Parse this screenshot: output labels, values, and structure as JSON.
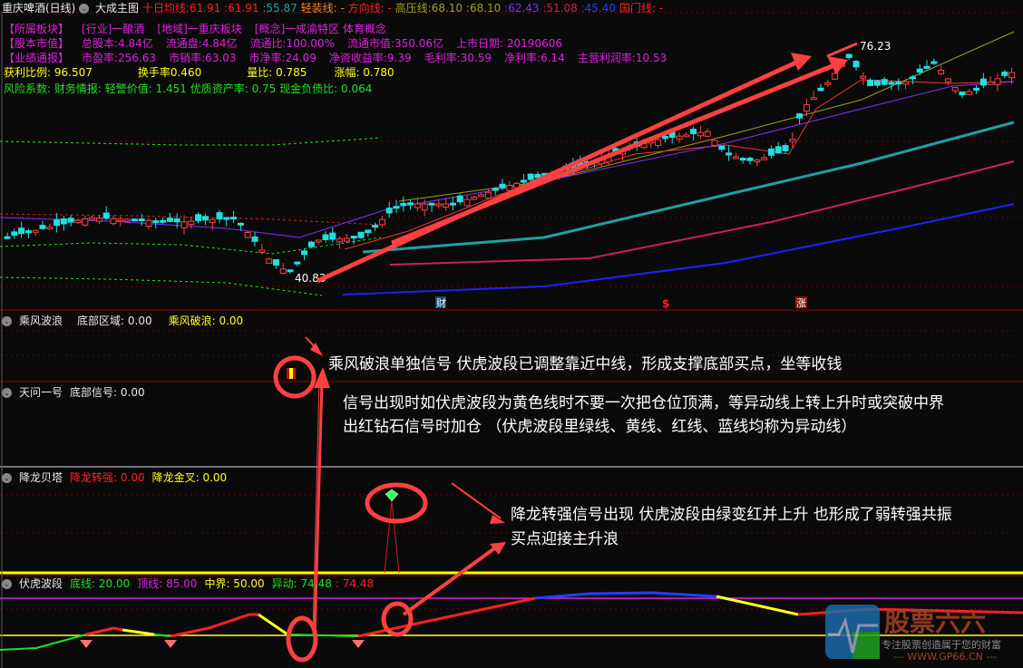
{
  "header": {
    "stock": "重庆啤酒(日线)",
    "chart_name": "大成主图",
    "ma_label": "十日均线",
    "ma_values": [
      ":61.91",
      ":61.91",
      ":55.87"
    ],
    "light_label": "轻装线: -",
    "direction_label": "方向线: -",
    "high_label": "高压线",
    "high_values": [
      ":68.10",
      ":68.10"
    ],
    "extra_values": [
      ":62.43",
      ":51.08",
      ":45.40"
    ],
    "gate_label": "国门线: -"
  },
  "info": {
    "sector": [
      "【所属板块】",
      "[行业]一酿酒",
      "[地域]一重庆板块",
      "[概念]一成渝特区 体育概念"
    ],
    "capital": [
      "【股本市值】",
      "总股本:4.84亿",
      "流通盘:4.84亿",
      "流通比:100.00%",
      "流通市值:350.06亿",
      "上市日期: 20190606"
    ],
    "performance": [
      "【业绩通报】",
      "市盈率:256.63",
      "市销率:63.03",
      "市净率:24.09",
      "净资收益率:9.39",
      "毛利率:30.59",
      "净利率:6.14",
      "主营利润率:10.53"
    ],
    "ratios": [
      "获利比例:  96.507",
      "换手率0.460",
      "量比:  0.785",
      "涨幅:  0.780"
    ],
    "risk": "风险系数: 财务情报: 轻警价值: 1.451 优质资产率: 0.75 现金负债比: 0.064"
  },
  "chart": {
    "high_label": "76.23",
    "low_label": "40.83",
    "marker_cai": "财",
    "marker_s": "$",
    "marker_zhang": "涨"
  },
  "panels": [
    {
      "name": "乘风波浪",
      "fields": [
        {
          "label": "底部区域: 0.00",
          "color": "#e8e8e8"
        },
        {
          "label": "乘风破浪: 0.00",
          "color": "#ffff20"
        }
      ]
    },
    {
      "name": "天问一号",
      "fields": [
        {
          "label": "底部信号: 0.00",
          "color": "#e8e8e8"
        }
      ]
    },
    {
      "name": "降龙贝塔",
      "fields": [
        {
          "label": "降龙转强: 0.00",
          "color": "#ff2020"
        },
        {
          "label": "降龙金叉: 0.00",
          "color": "#ffff20"
        }
      ]
    },
    {
      "name": "伏虎波段",
      "fields": [
        {
          "label": "底线: 20.00",
          "color": "#20e020"
        },
        {
          "label": "顶线: 85.00",
          "color": "#e020e0"
        },
        {
          "label": "中界: 50.00",
          "color": "#ffff20"
        },
        {
          "label": "异动: 74.48",
          "color": "#20e020"
        },
        {
          "label": ": 74.48",
          "color": "#ff2020"
        }
      ]
    }
  ],
  "notes": {
    "n1": "乘风破浪单独信号 伏虎波段已调整靠近中线，形成支撑底部买点，坐等收钱",
    "n2a": "信号出现时如伏虎波段为黄色线时不要一次把仓位顶满，等异动线上转上升时或突破中界",
    "n2b": "出红钻石信号时加仓 （伏虎波段里绿线、黄线、红线、蓝线均称为异动线）",
    "n3a": "降龙转强信号出现 伏虎波段由绿变红并上升 也形成了弱转强共振",
    "n3b": "买点迎接主升浪"
  },
  "watermark": {
    "title": "股票六六",
    "slogan": "专注股票创造属于您的财富",
    "url": "--- WWW.GP66.CN ---"
  }
}
